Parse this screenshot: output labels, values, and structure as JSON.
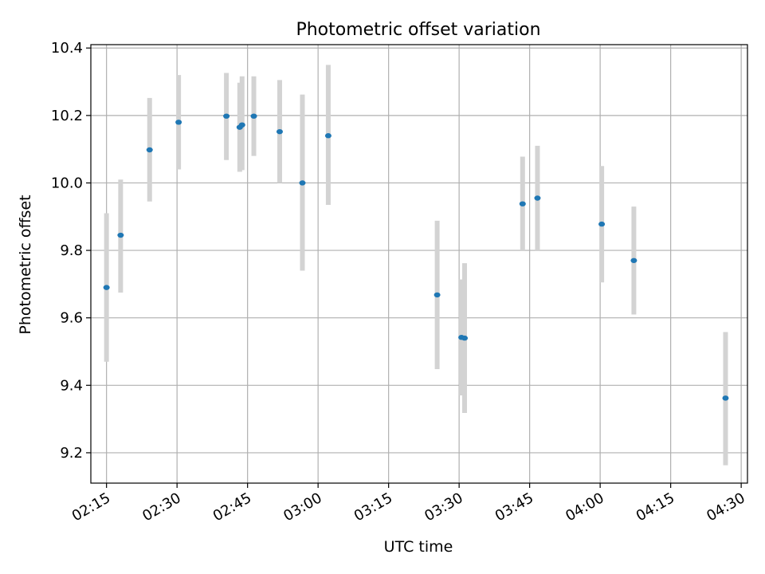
{
  "chart_data": {
    "type": "scatter",
    "title": "Photometric offset variation",
    "xlabel": "UTC time",
    "ylabel": "Photometric offset",
    "xlim": [
      "02:11:40",
      "04:31:20"
    ],
    "ylim": [
      9.11,
      10.41
    ],
    "x_ticks": [
      "02:15",
      "02:30",
      "02:45",
      "03:00",
      "03:15",
      "03:30",
      "03:45",
      "04:00",
      "04:15",
      "04:30"
    ],
    "y_ticks": [
      9.2,
      9.4,
      9.6,
      9.8,
      10.0,
      10.2,
      10.4
    ],
    "y_tick_labels": [
      "9.2",
      "9.4",
      "9.6",
      "9.8",
      "10.0",
      "10.2",
      "10.4"
    ],
    "grid": true,
    "marker_color": "#1f77b4",
    "errorbar_color": "#d3d3d3",
    "points": [
      {
        "t": "02:15:00",
        "y": 9.69,
        "err_low": 9.47,
        "err_high": 9.91
      },
      {
        "t": "02:18:00",
        "y": 9.845,
        "err_low": 9.675,
        "err_high": 10.01
      },
      {
        "t": "02:24:10",
        "y": 10.098,
        "err_low": 9.945,
        "err_high": 10.252
      },
      {
        "t": "02:30:20",
        "y": 10.18,
        "err_low": 10.04,
        "err_high": 10.32
      },
      {
        "t": "02:40:30",
        "y": 10.198,
        "err_low": 10.068,
        "err_high": 10.326
      },
      {
        "t": "02:43:20",
        "y": 10.165,
        "err_low": 10.033,
        "err_high": 10.297
      },
      {
        "t": "02:43:50",
        "y": 10.172,
        "err_low": 10.038,
        "err_high": 10.316
      },
      {
        "t": "02:46:20",
        "y": 10.198,
        "err_low": 10.08,
        "err_high": 10.316
      },
      {
        "t": "02:51:50",
        "y": 10.152,
        "err_low": 10.0,
        "err_high": 10.305
      },
      {
        "t": "02:56:40",
        "y": 10.0,
        "err_low": 9.74,
        "err_high": 10.262
      },
      {
        "t": "03:02:10",
        "y": 10.14,
        "err_low": 9.935,
        "err_high": 10.35
      },
      {
        "t": "03:25:20",
        "y": 9.668,
        "err_low": 9.448,
        "err_high": 9.888
      },
      {
        "t": "03:30:30",
        "y": 9.542,
        "err_low": 9.37,
        "err_high": 9.714
      },
      {
        "t": "03:31:10",
        "y": 9.54,
        "err_low": 9.318,
        "err_high": 9.762
      },
      {
        "t": "03:43:30",
        "y": 9.938,
        "err_low": 9.8,
        "err_high": 10.078
      },
      {
        "t": "03:46:40",
        "y": 9.955,
        "err_low": 9.8,
        "err_high": 10.11
      },
      {
        "t": "04:00:20",
        "y": 9.878,
        "err_low": 9.705,
        "err_high": 10.05
      },
      {
        "t": "04:07:10",
        "y": 9.77,
        "err_low": 9.61,
        "err_high": 9.93
      },
      {
        "t": "04:26:40",
        "y": 9.362,
        "err_low": 9.163,
        "err_high": 9.558
      }
    ]
  }
}
